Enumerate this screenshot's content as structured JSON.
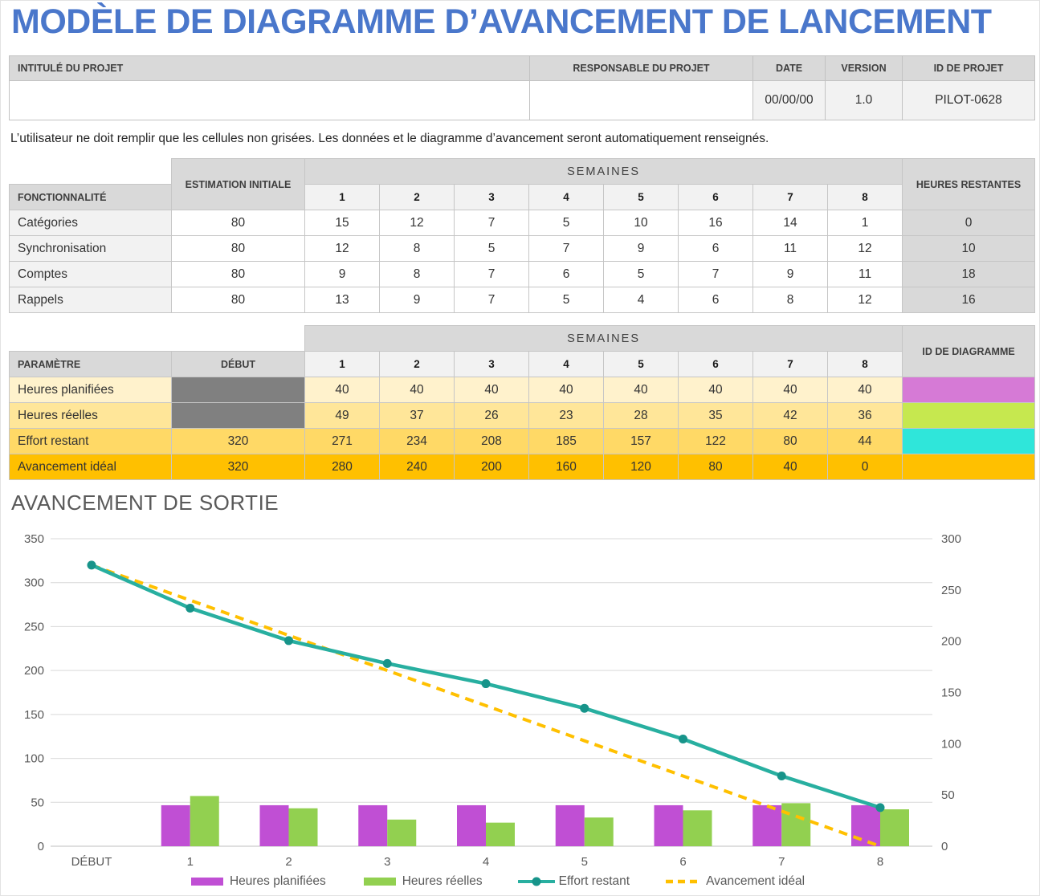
{
  "page": {
    "title": "MODÈLE DE DIAGRAMME D’AVANCEMENT DE LANCEMENT",
    "instruction": "L’utilisateur ne doit remplir que les cellules non grisées.  Les données et le diagramme d’avancement seront automatiquement renseignés."
  },
  "info_header": {
    "labels": {
      "project_title": "INTITULÉ DU PROJET",
      "project_manager": "RESPONSABLE DU PROJET",
      "date": "DATE",
      "version": "VERSION",
      "project_id": "ID DE PROJET"
    },
    "values": {
      "project_title": "",
      "project_manager": "",
      "date": "00/00/00",
      "version": "1.0",
      "project_id": "PILOT-0628"
    }
  },
  "features_table": {
    "headers": {
      "feature": "FONCTIONNALITÉ",
      "initial_estimate": "ESTIMATION INITIALE",
      "weeks": "SEMAINES",
      "hours_remaining": "HEURES RESTANTES"
    },
    "week_labels": [
      "1",
      "2",
      "3",
      "4",
      "5",
      "6",
      "7",
      "8"
    ],
    "rows": [
      {
        "feature": "Catégories",
        "initial_estimate": "80",
        "weeks": [
          "15",
          "12",
          "7",
          "5",
          "10",
          "16",
          "14",
          "1"
        ],
        "hours_remaining": "0"
      },
      {
        "feature": "Synchronisation",
        "initial_estimate": "80",
        "weeks": [
          "12",
          "8",
          "5",
          "7",
          "9",
          "6",
          "11",
          "12"
        ],
        "hours_remaining": "10"
      },
      {
        "feature": "Comptes",
        "initial_estimate": "80",
        "weeks": [
          "9",
          "8",
          "7",
          "6",
          "5",
          "7",
          "9",
          "11"
        ],
        "hours_remaining": "18"
      },
      {
        "feature": "Rappels",
        "initial_estimate": "80",
        "weeks": [
          "13",
          "9",
          "7",
          "5",
          "4",
          "6",
          "8",
          "12"
        ],
        "hours_remaining": "16"
      }
    ]
  },
  "params_table": {
    "headers": {
      "parameter": "PARAMÈTRE",
      "start": "DÉBUT",
      "weeks": "SEMAINES",
      "chart_id": "ID DE DIAGRAMME"
    },
    "week_labels": [
      "1",
      "2",
      "3",
      "4",
      "5",
      "6",
      "7",
      "8"
    ],
    "rows": [
      {
        "parameter": "Heures planifiées",
        "start": "",
        "start_shaded": true,
        "weeks": [
          "40",
          "40",
          "40",
          "40",
          "40",
          "40",
          "40",
          "40"
        ],
        "row_color": "#FFF2CC",
        "swatch_color": "#D67AD6",
        "editable": true
      },
      {
        "parameter": "Heures réelles",
        "start": "",
        "start_shaded": true,
        "weeks": [
          "49",
          "37",
          "26",
          "23",
          "28",
          "35",
          "42",
          "36"
        ],
        "row_color": "#FFE699",
        "swatch_color": "#C6E84F",
        "editable": true
      },
      {
        "parameter": "Effort restant",
        "start": "320",
        "start_shaded": false,
        "weeks": [
          "271",
          "234",
          "208",
          "185",
          "157",
          "122",
          "80",
          "44"
        ],
        "row_color": "#FFD966",
        "swatch_color": "#2FE6DA",
        "editable": false
      },
      {
        "parameter": "Avancement idéal",
        "start": "320",
        "start_shaded": false,
        "weeks": [
          "280",
          "240",
          "200",
          "160",
          "120",
          "80",
          "40",
          "0"
        ],
        "row_color": "#FFC000",
        "swatch_color": "#FFC000",
        "editable": false
      }
    ]
  },
  "chart_data": {
    "type": "combo-bar-line",
    "title": "AVANCEMENT DE SORTIE",
    "categories": [
      "DÉBUT",
      "1",
      "2",
      "3",
      "4",
      "5",
      "6",
      "7",
      "8"
    ],
    "series": [
      {
        "name": "Heures planifiées",
        "type": "bar",
        "axis": "right",
        "color": "#C04FD4",
        "values": [
          null,
          40,
          40,
          40,
          40,
          40,
          40,
          40,
          40
        ]
      },
      {
        "name": "Heures réelles",
        "type": "bar",
        "axis": "right",
        "color": "#92D050",
        "values": [
          null,
          49,
          37,
          26,
          23,
          28,
          35,
          42,
          36
        ]
      },
      {
        "name": "Effort restant",
        "type": "line",
        "axis": "left",
        "color": "#28AFA0",
        "marker_color": "#17948A",
        "values": [
          320,
          271,
          234,
          208,
          185,
          157,
          122,
          80,
          44
        ]
      },
      {
        "name": "Avancement idéal",
        "type": "line-dashed",
        "axis": "left",
        "color": "#FFC000",
        "values": [
          320,
          280,
          240,
          200,
          160,
          120,
          80,
          40,
          0
        ]
      }
    ],
    "left_axis": {
      "min": 0,
      "max": 350,
      "step": 50
    },
    "right_axis": {
      "min": 0,
      "max": 300,
      "step": 50
    },
    "grid": true,
    "legend_position": "bottom",
    "axis_text_color": "#595959",
    "gridline_color": "#D9D9D9"
  }
}
